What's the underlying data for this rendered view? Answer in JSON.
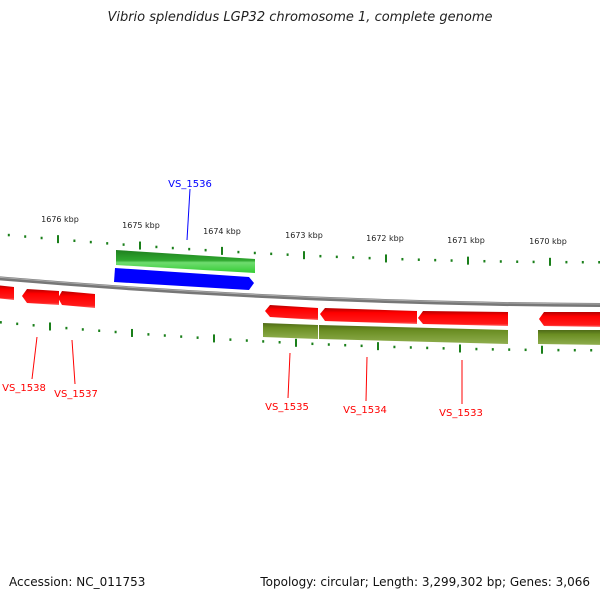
{
  "title": "Vibrio splendidus LGP32 chromosome 1, complete genome",
  "accession": "Accession: NC_011753",
  "summary": "Topology: circular; Length: 3,299,302 bp; Genes: 3,066",
  "ticks": [
    "1676 kbp",
    "1675 kbp",
    "1674 kbp",
    "1673 kbp",
    "1672 kbp",
    "1671 kbp",
    "1670 kbp"
  ],
  "genes": {
    "vs1536": "VS_1536",
    "vs1538": "VS_1538",
    "vs1537": "VS_1537",
    "vs1535": "VS_1535",
    "vs1534": "VS_1534",
    "vs1533": "VS_1533"
  },
  "colors": {
    "forward": "#0000ff",
    "reverse": "#ff0000",
    "gene_fwd": "#2ea82e",
    "gene_rev": "#6b8e23",
    "tick": "#1a7f1a",
    "backbone": "#808080"
  }
}
